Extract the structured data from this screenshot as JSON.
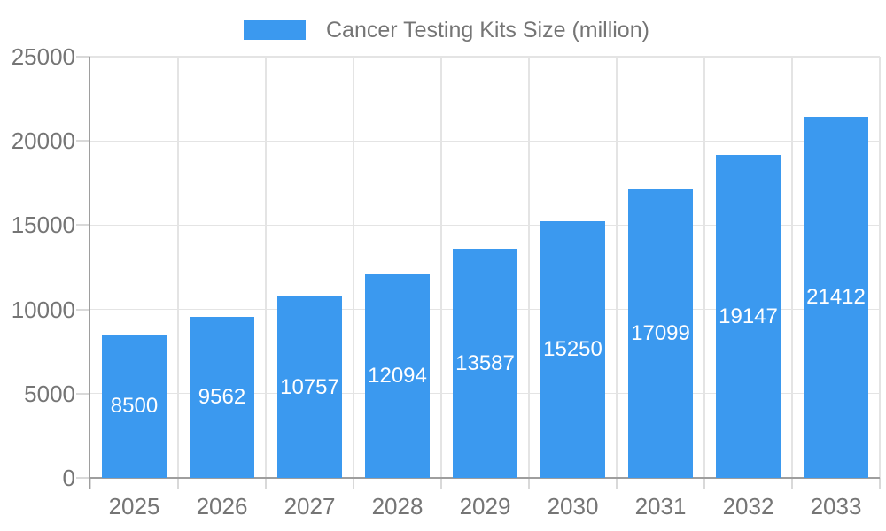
{
  "chart_data": {
    "type": "bar",
    "title": "Cancer Testing Kits Size (million)",
    "legend_position": "top",
    "categories": [
      "2025",
      "2026",
      "2027",
      "2028",
      "2029",
      "2030",
      "2031",
      "2032",
      "2033"
    ],
    "values": [
      8500,
      9562,
      10757,
      12094,
      13587,
      15250,
      17099,
      19147,
      21412
    ],
    "bar_value_labels": [
      "8500",
      "9562",
      "10757",
      "12094",
      "13587",
      "15250",
      "17099",
      "19147",
      "21412"
    ],
    "xlabel": "",
    "ylabel": "",
    "ylim": [
      0,
      25000
    ],
    "y_ticks": [
      0,
      5000,
      10000,
      15000,
      20000,
      25000
    ],
    "y_tick_labels": [
      "0",
      "5000",
      "10000",
      "15000",
      "20000",
      "25000"
    ],
    "grid": "both",
    "bar_labels_inside": true
  },
  "colors": {
    "bar": "#3b99ef",
    "bar_label": "#ffffff",
    "axis_line": "#9e9e9e",
    "grid_line": "#e4e4e4",
    "tick_mark": "#d9d9d9",
    "label_text": "#757575",
    "background": "#ffffff"
  }
}
